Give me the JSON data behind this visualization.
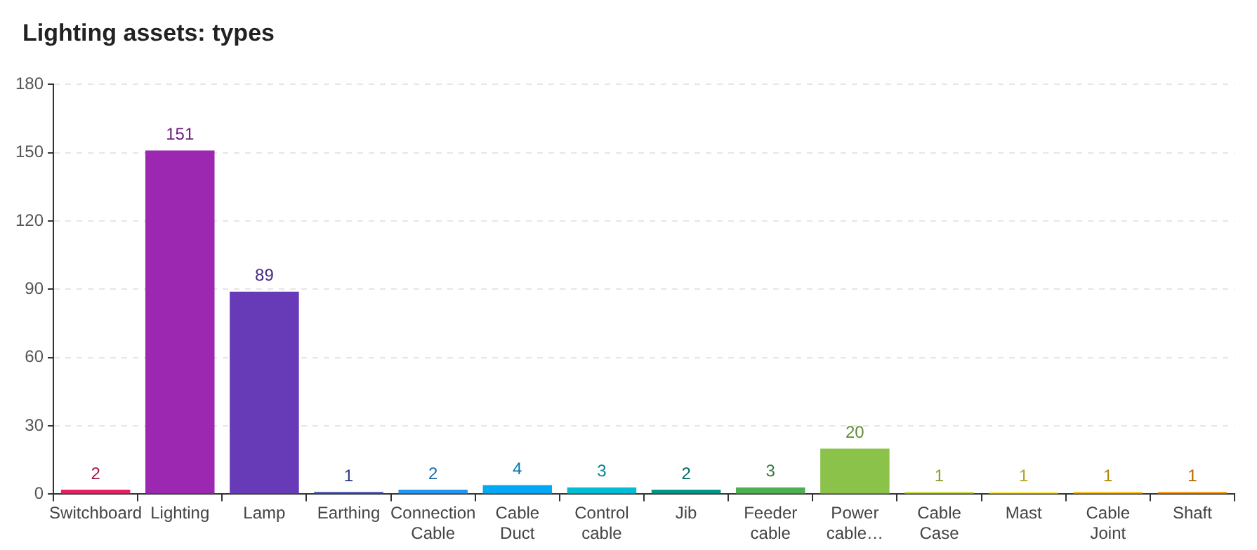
{
  "chart_data": {
    "type": "bar",
    "title": "Lighting assets: types",
    "categories": [
      "Switchboard",
      "Lighting",
      "Lamp",
      "Earthing",
      "Connection Cable",
      "Cable Duct",
      "Control cable",
      "Jib",
      "Feeder cable",
      "Power cable…",
      "Cable Case",
      "Mast",
      "Cable Joint",
      "Shaft"
    ],
    "values": [
      2,
      151,
      89,
      1,
      2,
      4,
      3,
      2,
      3,
      20,
      1,
      1,
      1,
      1
    ],
    "colors": [
      "#e91e63",
      "#9c27b0",
      "#673ab7",
      "#3f51b5",
      "#2196f3",
      "#03a9f4",
      "#00bcd4",
      "#009688",
      "#4caf50",
      "#8bc34a",
      "#cddc39",
      "#ffeb3b",
      "#ffc107",
      "#ff9800"
    ],
    "ylim": [
      0,
      180
    ],
    "yticks": [
      0,
      30,
      60,
      90,
      120,
      150,
      180
    ],
    "grid": "y",
    "data_labels": true,
    "legend": false
  }
}
